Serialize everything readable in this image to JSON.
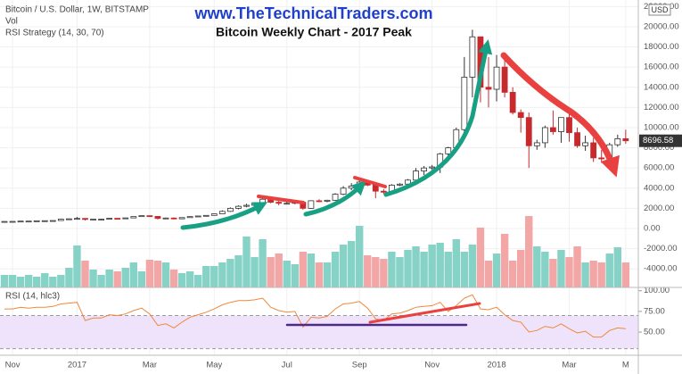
{
  "chart_data": [
    {
      "type": "candlestick",
      "title": "Bitcoin Weekly Chart - 2017 Peak",
      "subtitle": "www.TheTechnicalTraders.com",
      "symbol": "Bitcoin / U.S. Dollar, 1W, BITSTAMP",
      "volume_label": "Vol",
      "strategy_label": "RSI Strategy (14, 30, 70)",
      "currency": "USD",
      "categories": [
        null,
        "Nov",
        null,
        null,
        null,
        null,
        null,
        null,
        null,
        "2017",
        null,
        null,
        null,
        null,
        null,
        null,
        null,
        null,
        "Mar",
        null,
        null,
        null,
        null,
        null,
        null,
        null,
        "May",
        null,
        null,
        null,
        null,
        null,
        null,
        null,
        null,
        "Jul",
        null,
        null,
        null,
        null,
        null,
        null,
        null,
        null,
        "Sep",
        null,
        null,
        null,
        null,
        null,
        null,
        null,
        null,
        "Nov",
        null,
        null,
        null,
        null,
        null,
        null,
        null,
        "2018",
        null,
        null,
        null,
        null,
        null,
        null,
        null,
        null,
        "Mar",
        null,
        null,
        null,
        null,
        null,
        null,
        "M"
      ],
      "open": [
        650,
        700,
        705,
        735,
        735,
        765,
        775,
        790,
        920,
        960,
        1000,
        900,
        920,
        920,
        1010,
        1000,
        1050,
        1180,
        1270,
        1200,
        1000,
        1040,
        960,
        1080,
        1180,
        1240,
        1300,
        1450,
        1700,
        2000,
        2200,
        2300,
        2500,
        2900,
        2600,
        2500,
        2500,
        2600,
        2000,
        2750,
        2700,
        2800,
        3400,
        4000,
        4200,
        4600,
        4300,
        3700,
        3600,
        4300,
        4400,
        4800,
        5700,
        6000,
        6100,
        7400,
        8000,
        9800,
        15000,
        19000,
        14000,
        13800,
        16000,
        13500,
        11500,
        11000,
        8200,
        8500,
        10000,
        9600,
        11000,
        9500,
        8200,
        8500,
        7000,
        6900,
        8300,
        8900
      ],
      "high": [
        710,
        720,
        740,
        745,
        775,
        785,
        800,
        940,
        980,
        1150,
        1020,
        930,
        950,
        1030,
        1040,
        1070,
        1200,
        1290,
        1300,
        1210,
        1080,
        1100,
        1100,
        1200,
        1260,
        1320,
        1480,
        1800,
        2100,
        2300,
        2450,
        2600,
        3000,
        2950,
        2750,
        2650,
        2700,
        2650,
        2800,
        2900,
        2850,
        3500,
        4200,
        4500,
        4900,
        4700,
        4400,
        3900,
        4400,
        4500,
        4900,
        6000,
        6200,
        6300,
        7500,
        8100,
        10000,
        17000,
        19700,
        19000,
        17000,
        17200,
        17000,
        14000,
        11800,
        11500,
        8800,
        10200,
        11700,
        11000,
        11600,
        10000,
        9200,
        9000,
        7800,
        8500,
        9300,
        9800
      ],
      "low": [
        640,
        690,
        700,
        720,
        730,
        760,
        765,
        780,
        890,
        940,
        800,
        870,
        900,
        910,
        980,
        990,
        1040,
        1170,
        1150,
        900,
        980,
        900,
        950,
        1070,
        1170,
        1230,
        1290,
        1430,
        1650,
        1900,
        2100,
        2200,
        2450,
        2500,
        2300,
        2400,
        2400,
        1850,
        1950,
        2600,
        2600,
        2750,
        3300,
        3800,
        4100,
        4200,
        3000,
        3400,
        3550,
        4200,
        4300,
        4700,
        5300,
        5800,
        5500,
        7000,
        7900,
        9500,
        13000,
        12500,
        12000,
        12600,
        13000,
        11300,
        9500,
        6000,
        7800,
        8000,
        9300,
        8500,
        8600,
        8000,
        7700,
        6600,
        6500,
        6800,
        8100,
        8400
      ],
      "close": [
        700,
        705,
        735,
        735,
        765,
        775,
        790,
        920,
        960,
        1000,
        900,
        920,
        920,
        1010,
        1000,
        1050,
        1180,
        1270,
        1200,
        1000,
        1040,
        960,
        1080,
        1180,
        1240,
        1300,
        1450,
        1700,
        2000,
        2200,
        2300,
        2500,
        2900,
        2600,
        2500,
        2500,
        2600,
        2000,
        2750,
        2700,
        2800,
        3400,
        4000,
        4200,
        4600,
        4300,
        3700,
        3600,
        4300,
        4400,
        4800,
        5700,
        6000,
        6100,
        7400,
        8000,
        9800,
        15000,
        19000,
        14000,
        13800,
        16000,
        13500,
        11500,
        11000,
        8200,
        8500,
        10000,
        9600,
        11000,
        9500,
        8200,
        8500,
        7000,
        6900,
        8300,
        8900,
        8696.58
      ],
      "volume": [
        14,
        14,
        12,
        14,
        12,
        16,
        12,
        14,
        22,
        47,
        30,
        20,
        14,
        20,
        18,
        22,
        28,
        18,
        31,
        30,
        28,
        20,
        16,
        18,
        14,
        24,
        24,
        28,
        32,
        36,
        57,
        34,
        54,
        34,
        38,
        30,
        26,
        40,
        38,
        28,
        28,
        40,
        48,
        52,
        69,
        36,
        34,
        32,
        40,
        34,
        42,
        46,
        40,
        48,
        50,
        40,
        54,
        40,
        48,
        67,
        30,
        38,
        60,
        30,
        42,
        80,
        46,
        40,
        32,
        42,
        34,
        46,
        28,
        30,
        28,
        38,
        45,
        28
      ],
      "volume_ylim": [
        0,
        322
      ],
      "up_color": "#ffffff",
      "down_color": "#c62a2d",
      "volume_up_color": "#86d2c6",
      "volume_down_color": "#f3a6a6",
      "ylim": [
        -5840,
        22650
      ],
      "yticks": [
        {
          "value": 22000,
          "label": "22000.00"
        },
        {
          "value": 20000,
          "label": "20000.00"
        },
        {
          "value": 18000,
          "label": "18000.00"
        },
        {
          "value": 16000,
          "label": "16000.00"
        },
        {
          "value": 14000,
          "label": "14000.00"
        },
        {
          "value": 12000,
          "label": "12000.00"
        },
        {
          "value": 10000,
          "label": "10000.00"
        },
        {
          "value": 8000,
          "label": "8000.00"
        },
        {
          "value": 6000,
          "label": "6000.00"
        },
        {
          "value": 4000,
          "label": "4000.00"
        },
        {
          "value": 2000,
          "label": "2000.00"
        },
        {
          "value": 0,
          "label": "0.00"
        },
        {
          "value": -2000,
          "label": "-2000.00"
        },
        {
          "value": -4000,
          "label": "-4000.00"
        }
      ],
      "grid": true
    },
    {
      "type": "line",
      "title": "RSI (14, hlc3)",
      "color": "#f0883a",
      "values": [
        78,
        78,
        80,
        79,
        80,
        80,
        81,
        84,
        85,
        86,
        64,
        67,
        67,
        71,
        70,
        72,
        76,
        79,
        72,
        58,
        60,
        55,
        62,
        68,
        71,
        74,
        78,
        83,
        86,
        88,
        88,
        89,
        91,
        80,
        76,
        74,
        75,
        56,
        68,
        67,
        69,
        78,
        84,
        85,
        87,
        79,
        66,
        64,
        72,
        73,
        76,
        80,
        81,
        82,
        86,
        75,
        82,
        91,
        95,
        78,
        77,
        80,
        71,
        64,
        62,
        50,
        52,
        57,
        55,
        60,
        54,
        49,
        51,
        44,
        44,
        52,
        55,
        54
      ],
      "levels": [
        30,
        70
      ],
      "band_color": "#efe2fb",
      "ylim": [
        22,
        104
      ],
      "yticks": [
        {
          "value": 100,
          "label": "100.00"
        },
        {
          "value": 75,
          "label": "75.00"
        },
        {
          "value": 50,
          "label": "50.00"
        }
      ]
    }
  ]
}
